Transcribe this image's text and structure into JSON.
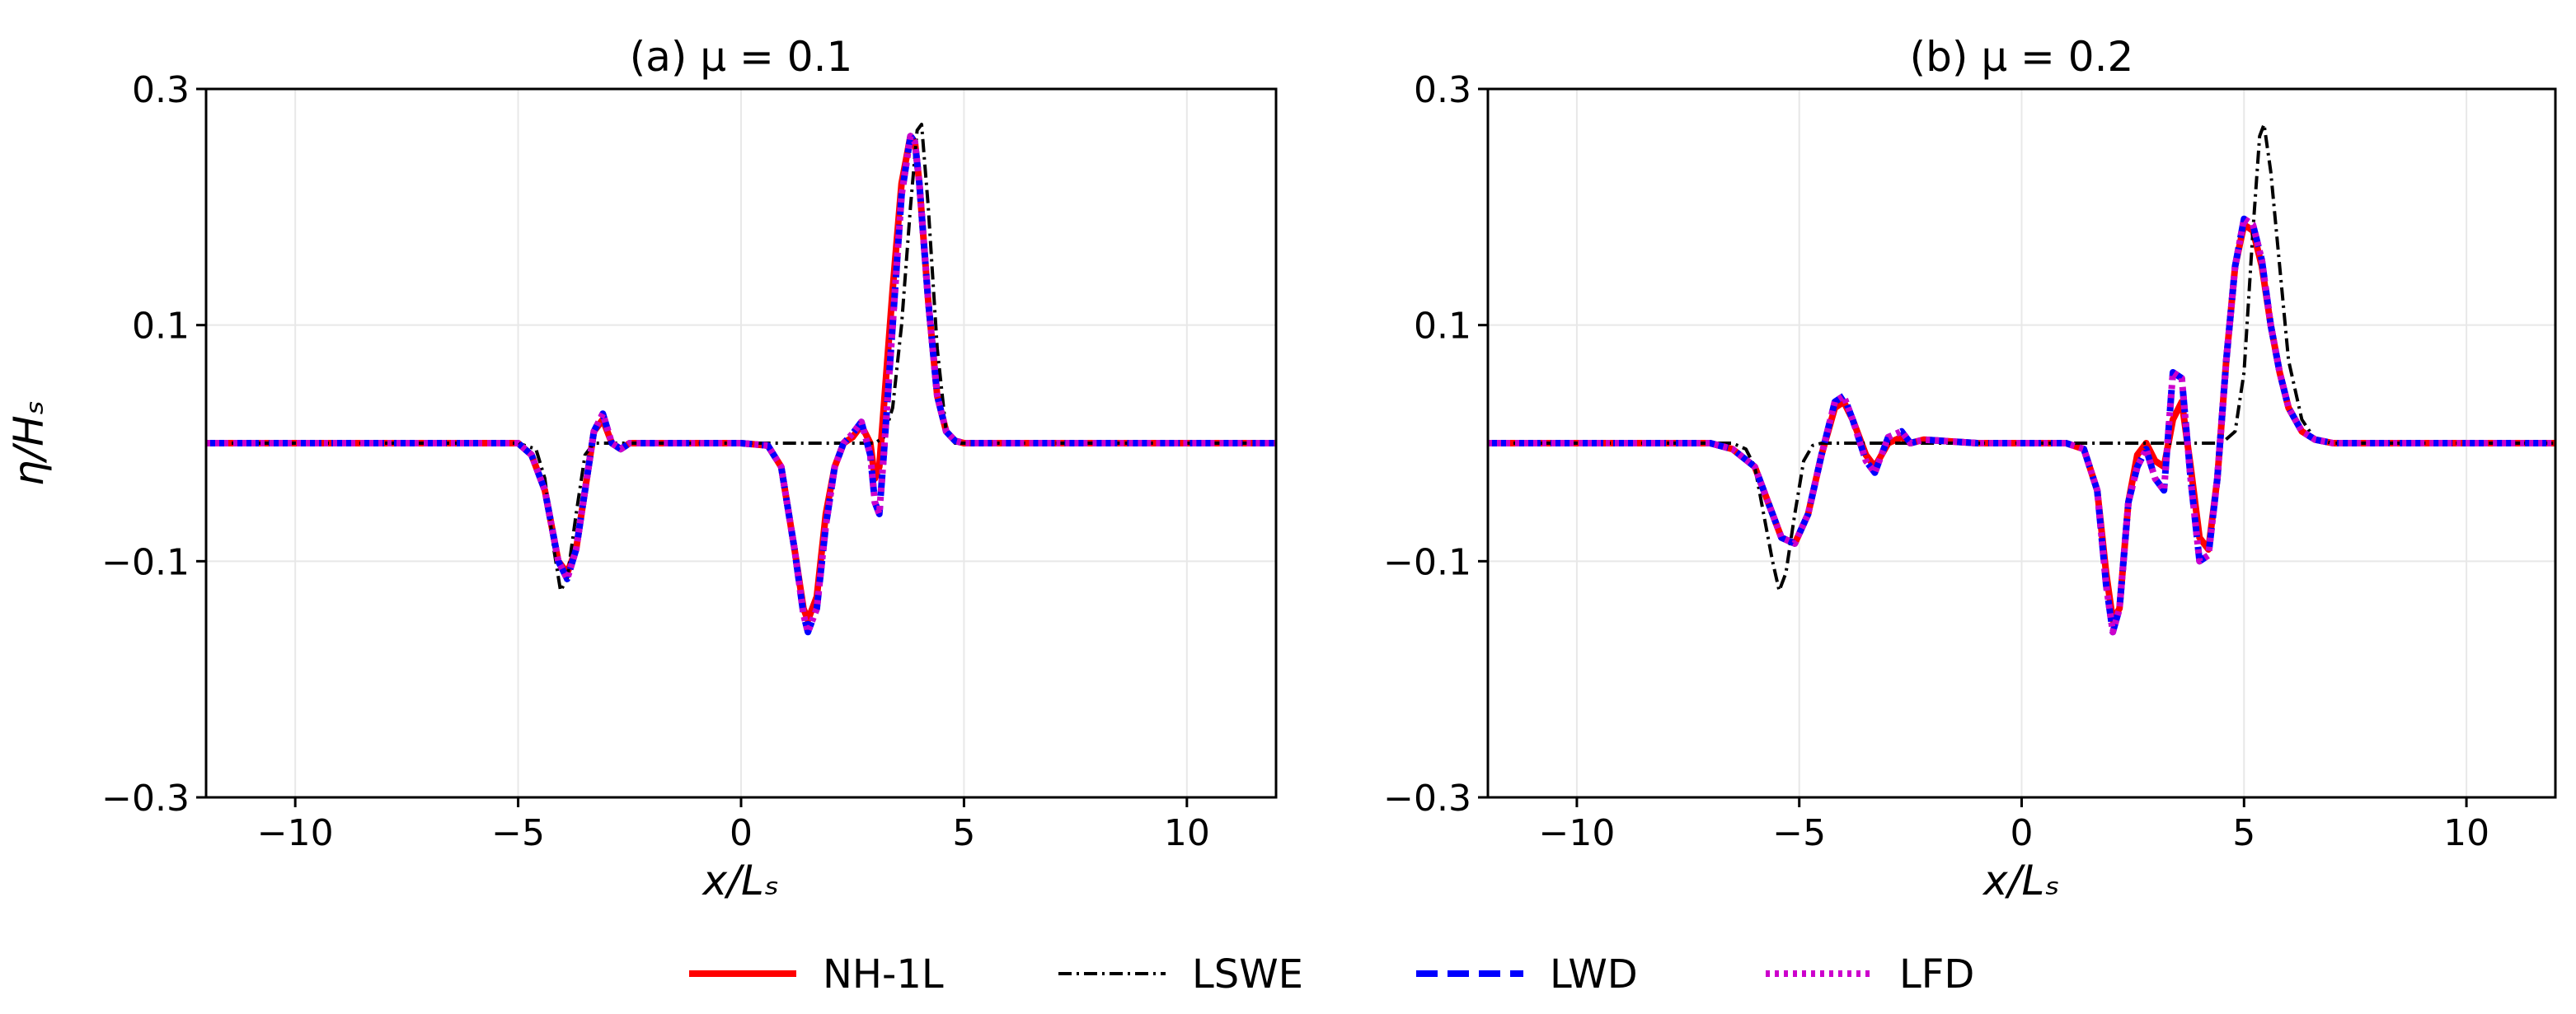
{
  "chart_data": [
    {
      "type": "line",
      "title": "(a) μ = 0.1",
      "xlabel": "x/Lₛ",
      "ylabel": "η/Hₛ",
      "xlim": [
        -12,
        12
      ],
      "ylim": [
        -0.3,
        0.3
      ],
      "xticks": [
        "−10",
        "−5",
        "0",
        "5",
        "10"
      ],
      "yticks": [
        "−0.3",
        "−0.1",
        "0.1",
        "0.3"
      ],
      "grid": true,
      "series": [
        {
          "name": "NH-1L",
          "color": "#ff0000",
          "x": [
            -12,
            -5,
            -4.7,
            -4.4,
            -4.1,
            -3.9,
            -3.7,
            -3.5,
            -3.3,
            -3.1,
            -2.9,
            -2.7,
            -2.5,
            -2,
            -1,
            0,
            0.6,
            0.9,
            1.2,
            1.4,
            1.5,
            1.7,
            1.9,
            2.1,
            2.3,
            2.5,
            2.7,
            2.9,
            3.0,
            3.1,
            3.2,
            3.4,
            3.6,
            3.8,
            3.9,
            4.0,
            4.2,
            4.4,
            4.6,
            4.8,
            5,
            6,
            12
          ],
          "y": [
            0,
            0,
            -0.01,
            -0.04,
            -0.1,
            -0.11,
            -0.09,
            -0.04,
            0.01,
            0.02,
            0,
            -0.005,
            0,
            0,
            0,
            0,
            -0.002,
            -0.02,
            -0.09,
            -0.14,
            -0.15,
            -0.13,
            -0.06,
            -0.02,
            0,
            0.005,
            0.015,
            0,
            -0.03,
            -0.02,
            0.03,
            0.13,
            0.22,
            0.26,
            0.255,
            0.22,
            0.12,
            0.04,
            0.01,
            0.002,
            0,
            0,
            0
          ]
        },
        {
          "name": "LSWE",
          "color": "#000000",
          "x": [
            -12,
            -5,
            -4.6,
            -4.4,
            -4.2,
            -4.05,
            -3.9,
            -3.7,
            -3.5,
            -3.3,
            -3.0,
            -2.5,
            3.0,
            3.2,
            3.4,
            3.6,
            3.8,
            3.95,
            4.05,
            4.2,
            4.4,
            4.6,
            4.8,
            5,
            12
          ],
          "y": [
            0,
            0,
            -0.005,
            -0.03,
            -0.09,
            -0.125,
            -0.115,
            -0.06,
            -0.01,
            0,
            0,
            0,
            0,
            0.005,
            0.03,
            0.1,
            0.2,
            0.265,
            0.27,
            0.2,
            0.08,
            0.01,
            0,
            0,
            0
          ]
        },
        {
          "name": "LWD",
          "color": "#0000ff",
          "x": [
            -12,
            -5,
            -4.7,
            -4.4,
            -4.1,
            -3.9,
            -3.7,
            -3.5,
            -3.3,
            -3.1,
            -2.9,
            -2.7,
            -2.5,
            -2,
            -1,
            0,
            0.6,
            0.9,
            1.2,
            1.4,
            1.5,
            1.7,
            1.9,
            2.1,
            2.3,
            2.5,
            2.7,
            2.9,
            3.0,
            3.1,
            3.2,
            3.4,
            3.6,
            3.8,
            3.9,
            4.0,
            4.2,
            4.4,
            4.6,
            4.8,
            5,
            6,
            12
          ],
          "y": [
            0,
            0,
            -0.01,
            -0.04,
            -0.1,
            -0.115,
            -0.09,
            -0.04,
            0.01,
            0.025,
            0,
            -0.005,
            0,
            0,
            0,
            0,
            -0.002,
            -0.02,
            -0.09,
            -0.145,
            -0.16,
            -0.14,
            -0.07,
            -0.02,
            0,
            0.008,
            0.018,
            -0.01,
            -0.05,
            -0.06,
            -0.01,
            0.1,
            0.21,
            0.26,
            0.255,
            0.22,
            0.12,
            0.04,
            0.01,
            0.002,
            0,
            0,
            0
          ]
        },
        {
          "name": "LFD",
          "color": "#cc00cc",
          "x": [
            -12,
            -5,
            -4.7,
            -4.4,
            -4.1,
            -3.9,
            -3.7,
            -3.5,
            -3.3,
            -3.1,
            -2.9,
            -2.7,
            -2.5,
            -2,
            -1,
            0,
            0.6,
            0.9,
            1.2,
            1.4,
            1.5,
            1.7,
            1.9,
            2.1,
            2.3,
            2.5,
            2.7,
            2.9,
            3.0,
            3.1,
            3.2,
            3.4,
            3.6,
            3.8,
            3.9,
            4.0,
            4.2,
            4.4,
            4.6,
            4.8,
            5,
            6,
            12
          ],
          "y": [
            0,
            0,
            -0.01,
            -0.04,
            -0.1,
            -0.115,
            -0.09,
            -0.04,
            0.01,
            0.025,
            0,
            -0.005,
            0,
            0,
            0,
            0,
            -0.002,
            -0.02,
            -0.09,
            -0.145,
            -0.16,
            -0.14,
            -0.07,
            -0.02,
            0,
            0.008,
            0.018,
            -0.01,
            -0.05,
            -0.06,
            -0.01,
            0.1,
            0.21,
            0.26,
            0.255,
            0.22,
            0.12,
            0.04,
            0.01,
            0.002,
            0,
            0,
            0
          ]
        }
      ]
    },
    {
      "type": "line",
      "title": "(b) μ = 0.2",
      "xlabel": "x/Lₛ",
      "ylabel": "",
      "xlim": [
        -12,
        12
      ],
      "ylim": [
        -0.3,
        0.3
      ],
      "xticks": [
        "−10",
        "−5",
        "0",
        "5",
        "10"
      ],
      "yticks": [
        "−0.3",
        "−0.1",
        "0.1",
        "0.3"
      ],
      "grid": true,
      "series": [
        {
          "name": "NH-1L",
          "color": "#ff0000",
          "x": [
            -12,
            -7,
            -6.5,
            -6,
            -5.7,
            -5.4,
            -5.1,
            -4.8,
            -4.5,
            -4.2,
            -4.0,
            -3.8,
            -3.5,
            -3.3,
            -3.0,
            -2.7,
            -2.5,
            -2.2,
            -1,
            0,
            1,
            1.4,
            1.7,
            1.9,
            2.05,
            2.2,
            2.4,
            2.6,
            2.8,
            3.0,
            3.2,
            3.4,
            3.6,
            3.8,
            4.0,
            4.2,
            4.4,
            4.6,
            4.8,
            5.0,
            5.2,
            5.4,
            5.6,
            5.8,
            6.0,
            6.3,
            6.6,
            7,
            8,
            12
          ],
          "y": [
            0,
            0,
            -0.005,
            -0.02,
            -0.05,
            -0.08,
            -0.085,
            -0.06,
            -0.01,
            0.03,
            0.035,
            0.02,
            -0.01,
            -0.02,
            0,
            0.005,
            0,
            0.003,
            0,
            0,
            0,
            -0.005,
            -0.04,
            -0.11,
            -0.15,
            -0.14,
            -0.05,
            -0.01,
            0,
            -0.015,
            -0.02,
            0.02,
            0.035,
            -0.02,
            -0.08,
            -0.09,
            -0.03,
            0.07,
            0.15,
            0.185,
            0.18,
            0.15,
            0.1,
            0.06,
            0.03,
            0.01,
            0.003,
            0,
            0,
            0
          ]
        },
        {
          "name": "LSWE",
          "color": "#000000",
          "x": [
            -12,
            -7,
            -6.5,
            -6.2,
            -6.0,
            -5.8,
            -5.6,
            -5.45,
            -5.3,
            -5.1,
            -4.9,
            -4.7,
            -4.5,
            4.5,
            4.8,
            5.0,
            5.2,
            5.35,
            5.45,
            5.6,
            5.8,
            6.0,
            6.3,
            6.6,
            7,
            12
          ],
          "y": [
            0,
            0,
            0,
            -0.005,
            -0.02,
            -0.06,
            -0.1,
            -0.125,
            -0.11,
            -0.06,
            -0.015,
            -0.002,
            0,
            0,
            0.01,
            0.06,
            0.18,
            0.26,
            0.27,
            0.23,
            0.15,
            0.07,
            0.02,
            0.003,
            0,
            0
          ]
        },
        {
          "name": "LWD",
          "color": "#0000ff",
          "x": [
            -12,
            -7,
            -6.5,
            -6,
            -5.7,
            -5.4,
            -5.1,
            -4.8,
            -4.5,
            -4.2,
            -4.0,
            -3.8,
            -3.5,
            -3.3,
            -3.0,
            -2.7,
            -2.5,
            -2.2,
            -1,
            0,
            1,
            1.4,
            1.7,
            1.9,
            2.05,
            2.2,
            2.4,
            2.6,
            2.8,
            3.0,
            3.2,
            3.4,
            3.6,
            3.8,
            4.0,
            4.2,
            4.4,
            4.6,
            4.8,
            5.0,
            5.2,
            5.4,
            5.6,
            5.8,
            6.0,
            6.3,
            6.6,
            7,
            8,
            12
          ],
          "y": [
            0,
            0,
            -0.005,
            -0.02,
            -0.05,
            -0.08,
            -0.085,
            -0.06,
            -0.01,
            0.035,
            0.04,
            0.02,
            -0.015,
            -0.025,
            0.005,
            0.01,
            0,
            0.003,
            0,
            0,
            0,
            -0.005,
            -0.04,
            -0.12,
            -0.16,
            -0.14,
            -0.05,
            -0.02,
            -0.005,
            -0.03,
            -0.04,
            0.06,
            0.055,
            -0.03,
            -0.1,
            -0.095,
            -0.03,
            0.07,
            0.15,
            0.19,
            0.185,
            0.155,
            0.1,
            0.06,
            0.03,
            0.01,
            0.003,
            0,
            0,
            0
          ]
        },
        {
          "name": "LFD",
          "color": "#cc00cc",
          "x": [
            -12,
            -7,
            -6.5,
            -6,
            -5.7,
            -5.4,
            -5.1,
            -4.8,
            -4.5,
            -4.2,
            -4.0,
            -3.8,
            -3.5,
            -3.3,
            -3.0,
            -2.7,
            -2.5,
            -2.2,
            -1,
            0,
            1,
            1.4,
            1.7,
            1.9,
            2.05,
            2.2,
            2.4,
            2.6,
            2.8,
            3.0,
            3.2,
            3.4,
            3.6,
            3.8,
            4.0,
            4.2,
            4.4,
            4.6,
            4.8,
            5.0,
            5.2,
            5.4,
            5.6,
            5.8,
            6.0,
            6.3,
            6.6,
            7,
            8,
            12
          ],
          "y": [
            0,
            0,
            -0.005,
            -0.02,
            -0.05,
            -0.08,
            -0.085,
            -0.06,
            -0.01,
            0.035,
            0.04,
            0.02,
            -0.015,
            -0.025,
            0.005,
            0.01,
            0,
            0.003,
            0,
            0,
            0,
            -0.005,
            -0.04,
            -0.12,
            -0.16,
            -0.14,
            -0.05,
            -0.02,
            -0.005,
            -0.03,
            -0.04,
            0.06,
            0.055,
            -0.03,
            -0.1,
            -0.095,
            -0.03,
            0.07,
            0.15,
            0.19,
            0.185,
            0.155,
            0.1,
            0.06,
            0.03,
            0.01,
            0.003,
            0,
            0,
            0
          ]
        }
      ]
    }
  ],
  "legend": {
    "placement": "bottom-center",
    "items": [
      {
        "label": "NH-1L",
        "color": "#ff0000",
        "style": "solid"
      },
      {
        "label": "LSWE",
        "color": "#000000",
        "style": "dashdot"
      },
      {
        "label": "LWD",
        "color": "#0000ff",
        "style": "dashed"
      },
      {
        "label": "LFD",
        "color": "#cc00cc",
        "style": "dotted"
      }
    ]
  }
}
